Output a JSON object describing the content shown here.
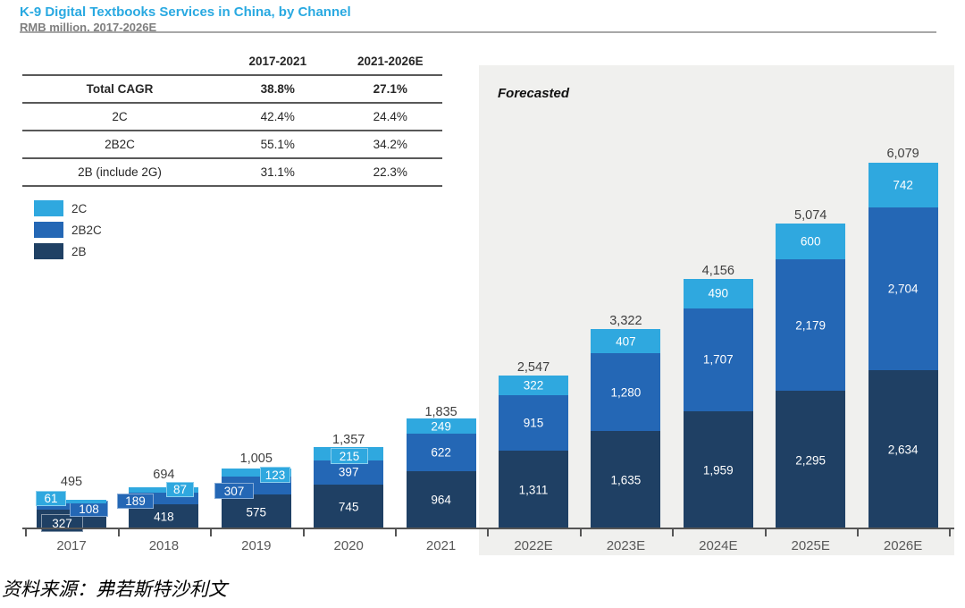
{
  "header": {
    "title": "K-9 Digital Textbooks Services in China, by Channel",
    "subtitle": "RMB million, 2017-2026E"
  },
  "cagr_table": {
    "col_headers": [
      "",
      "2017-2021",
      "2021-2026E"
    ],
    "rows": [
      {
        "label": "Total CAGR",
        "v1": "38.8%",
        "v2": "27.1%"
      },
      {
        "label": "2C",
        "v1": "42.4%",
        "v2": "24.4%"
      },
      {
        "label": "2B2C",
        "v1": "55.1%",
        "v2": "34.2%"
      },
      {
        "label": "2B (include 2G)",
        "v1": "31.1%",
        "v2": "22.3%"
      }
    ]
  },
  "legend": [
    {
      "label": "2C",
      "color": "#2FA8DF"
    },
    {
      "label": "2B2C",
      "color": "#2467B5"
    },
    {
      "label": "2B",
      "color": "#1F4064"
    }
  ],
  "forecast_label": "Forecasted",
  "source": "资料来源：弗若斯特沙利文",
  "chart_data": {
    "type": "bar",
    "stacked": true,
    "title": "K-9 Digital Textbooks Services in China, by Channel",
    "ylabel": "RMB million",
    "ylim": [
      0,
      6080
    ],
    "grid": false,
    "legend_position": "upper-left",
    "forecast_categories_from": "2022E",
    "categories": [
      "2017",
      "2018",
      "2019",
      "2020",
      "2021",
      "2022E",
      "2023E",
      "2024E",
      "2025E",
      "2026E"
    ],
    "series": [
      {
        "name": "2B",
        "color": "#1F4064",
        "values": [
          327,
          418,
          575,
          745,
          964,
          1311,
          1635,
          1959,
          2295,
          2634
        ]
      },
      {
        "name": "2B2C",
        "color": "#2467B5",
        "values": [
          108,
          189,
          307,
          397,
          622,
          915,
          1280,
          1707,
          2179,
          2704
        ]
      },
      {
        "name": "2C",
        "color": "#2FA8DF",
        "values": [
          61,
          87,
          123,
          215,
          249,
          322,
          407,
          490,
          600,
          742
        ]
      }
    ],
    "totals": [
      "495",
      "694",
      "1,005",
      "1,357",
      "1,835",
      "2,547",
      "3,322",
      "4,156",
      "5,074",
      "6,079"
    ]
  }
}
